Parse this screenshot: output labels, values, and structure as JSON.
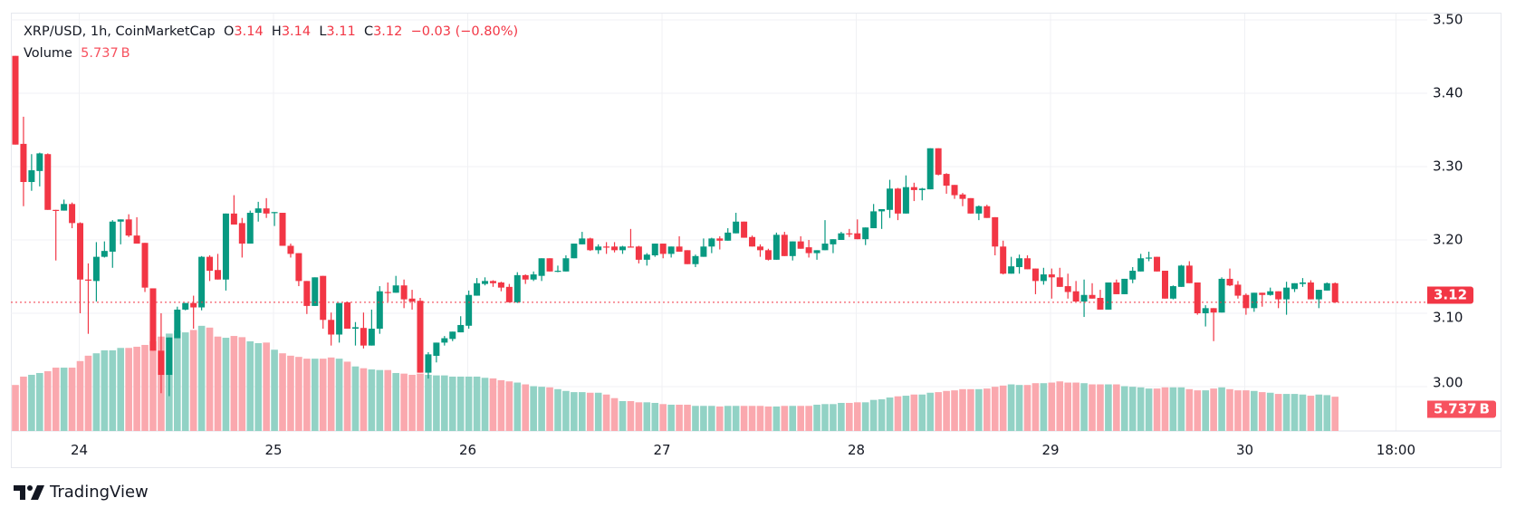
{
  "legend": {
    "symbol": "XRP/USD, 1h, CoinMarketCap",
    "o_label": "O",
    "o": "3.14",
    "h_label": "H",
    "h": "3.14",
    "l_label": "L",
    "l": "3.11",
    "c_label": "C",
    "c": "3.12",
    "change": "−0.03 (−0.80%)",
    "volume_label": "Volume",
    "volume": "5.737 B"
  },
  "colors": {
    "up": "#089981",
    "down": "#f23645",
    "up_volume": "#92d2c5",
    "down_volume": "#faa8ae",
    "grid": "#f0f1f4"
  },
  "price_axis": [
    "3.50",
    "3.40",
    "3.30",
    "3.20",
    "3.10",
    "3.00"
  ],
  "time_axis": [
    "24",
    "25",
    "26",
    "27",
    "28",
    "29",
    "30",
    "18:00"
  ],
  "last_price_badge": "3.12",
  "volume_badge": "5.737 B",
  "brand": "TradingView",
  "chart_data": {
    "type": "candlestick",
    "interval": "1h",
    "start": "23 16:00",
    "fields": [
      "open",
      "high",
      "low",
      "close",
      "volume_B"
    ],
    "ylim": [
      2.95,
      3.51
    ],
    "candles": [
      [
        3.451,
        3.451,
        3.33,
        3.33,
        7.7
      ],
      [
        3.331,
        3.368,
        3.246,
        3.279,
        9.1
      ],
      [
        3.279,
        3.317,
        3.267,
        3.295,
        9.4
      ],
      [
        3.294,
        3.319,
        3.273,
        3.318,
        9.7
      ],
      [
        3.317,
        3.318,
        3.241,
        3.241,
        10.0
      ],
      [
        3.241,
        3.241,
        3.172,
        3.24,
        10.6
      ],
      [
        3.24,
        3.255,
        3.24,
        3.249,
        10.6
      ],
      [
        3.249,
        3.251,
        3.216,
        3.223,
        10.6
      ],
      [
        3.223,
        3.224,
        3.1,
        3.146,
        11.7
      ],
      [
        3.146,
        3.168,
        3.072,
        3.145,
        12.6
      ],
      [
        3.144,
        3.197,
        3.116,
        3.177,
        13.0
      ],
      [
        3.177,
        3.198,
        3.176,
        3.185,
        13.5
      ],
      [
        3.184,
        3.227,
        3.162,
        3.225,
        13.5
      ],
      [
        3.225,
        3.228,
        3.194,
        3.228,
        13.9
      ],
      [
        3.228,
        3.235,
        3.204,
        3.206,
        13.9
      ],
      [
        3.206,
        3.231,
        3.195,
        3.195,
        14.1
      ],
      [
        3.196,
        3.196,
        3.129,
        3.135,
        14.4
      ],
      [
        3.134,
        3.134,
        3.049,
        3.049,
        15.0
      ],
      [
        3.049,
        3.1,
        2.991,
        3.016,
        15.8
      ],
      [
        3.016,
        3.067,
        2.987,
        3.067,
        16.3
      ],
      [
        3.066,
        3.109,
        3.066,
        3.105,
        16.8
      ],
      [
        3.105,
        3.114,
        3.104,
        3.114,
        16.5
      ],
      [
        3.114,
        3.124,
        3.079,
        3.108,
        16.9
      ],
      [
        3.108,
        3.178,
        3.104,
        3.177,
        17.6
      ],
      [
        3.177,
        3.179,
        3.144,
        3.158,
        17.3
      ],
      [
        3.159,
        3.181,
        3.146,
        3.146,
        15.8
      ],
      [
        3.146,
        3.236,
        3.131,
        3.236,
        15.6
      ],
      [
        3.236,
        3.261,
        3.221,
        3.221,
        15.9
      ],
      [
        3.223,
        3.23,
        3.176,
        3.195,
        15.7
      ],
      [
        3.195,
        3.24,
        3.195,
        3.237,
        15.0
      ],
      [
        3.237,
        3.252,
        3.225,
        3.243,
        14.7
      ],
      [
        3.243,
        3.257,
        3.23,
        3.236,
        14.8
      ],
      [
        3.237,
        3.238,
        3.219,
        3.238,
        13.6
      ],
      [
        3.237,
        3.237,
        3.192,
        3.192,
        13.0
      ],
      [
        3.192,
        3.195,
        3.176,
        3.181,
        12.6
      ],
      [
        3.182,
        3.182,
        3.137,
        3.144,
        12.4
      ],
      [
        3.144,
        3.144,
        3.099,
        3.11,
        12.1
      ],
      [
        3.11,
        3.149,
        3.11,
        3.149,
        12.1
      ],
      [
        3.151,
        3.151,
        3.079,
        3.091,
        12.1
      ],
      [
        3.091,
        3.101,
        3.056,
        3.071,
        12.3
      ],
      [
        3.071,
        3.114,
        3.06,
        3.114,
        12.1
      ],
      [
        3.115,
        3.116,
        3.079,
        3.079,
        11.6
      ],
      [
        3.079,
        3.088,
        3.056,
        3.081,
        10.8
      ],
      [
        3.08,
        3.101,
        3.052,
        3.056,
        10.5
      ],
      [
        3.056,
        3.105,
        3.056,
        3.079,
        10.3
      ],
      [
        3.079,
        3.137,
        3.072,
        3.13,
        10.2
      ],
      [
        3.129,
        3.142,
        3.116,
        3.128,
        10.2
      ],
      [
        3.128,
        3.151,
        3.128,
        3.138,
        9.7
      ],
      [
        3.138,
        3.146,
        3.107,
        3.119,
        9.6
      ],
      [
        3.12,
        3.132,
        3.105,
        3.116,
        9.4
      ],
      [
        3.117,
        3.121,
        3.019,
        3.019,
        9.6
      ],
      [
        3.019,
        3.047,
        3.011,
        3.044,
        9.4
      ],
      [
        3.042,
        3.06,
        3.033,
        3.06,
        9.3
      ],
      [
        3.06,
        3.069,
        3.056,
        3.066,
        9.3
      ],
      [
        3.065,
        3.075,
        3.062,
        3.075,
        9.1
      ],
      [
        3.074,
        3.096,
        3.074,
        3.084,
        9.1
      ],
      [
        3.083,
        3.131,
        3.079,
        3.125,
        9.1
      ],
      [
        3.124,
        3.148,
        3.124,
        3.141,
        9.1
      ],
      [
        3.14,
        3.149,
        3.138,
        3.144,
        8.9
      ],
      [
        3.144,
        3.145,
        3.136,
        3.141,
        8.8
      ],
      [
        3.142,
        3.143,
        3.13,
        3.135,
        8.5
      ],
      [
        3.136,
        3.14,
        3.115,
        3.115,
        8.3
      ],
      [
        3.115,
        3.156,
        3.114,
        3.152,
        8.1
      ],
      [
        3.152,
        3.153,
        3.14,
        3.146,
        7.8
      ],
      [
        3.146,
        3.157,
        3.144,
        3.153,
        7.5
      ],
      [
        3.151,
        3.175,
        3.144,
        3.175,
        7.4
      ],
      [
        3.175,
        3.175,
        3.157,
        3.157,
        7.3
      ],
      [
        3.157,
        3.165,
        3.156,
        3.158,
        7.0
      ],
      [
        3.157,
        3.179,
        3.157,
        3.175,
        6.7
      ],
      [
        3.175,
        3.195,
        3.175,
        3.195,
        6.5
      ],
      [
        3.194,
        3.211,
        3.194,
        3.202,
        6.5
      ],
      [
        3.202,
        3.203,
        3.185,
        3.186,
        6.4
      ],
      [
        3.186,
        3.194,
        3.181,
        3.191,
        6.4
      ],
      [
        3.191,
        3.197,
        3.181,
        3.19,
        6.1
      ],
      [
        3.191,
        3.197,
        3.183,
        3.186,
        5.5
      ],
      [
        3.186,
        3.192,
        3.181,
        3.191,
        5.0
      ],
      [
        3.191,
        3.215,
        3.19,
        3.19,
        5.0
      ],
      [
        3.191,
        3.192,
        3.168,
        3.173,
        4.8
      ],
      [
        3.173,
        3.182,
        3.165,
        3.18,
        4.8
      ],
      [
        3.179,
        3.195,
        3.177,
        3.195,
        4.7
      ],
      [
        3.195,
        3.195,
        3.175,
        3.181,
        4.5
      ],
      [
        3.181,
        3.191,
        3.176,
        3.191,
        4.4
      ],
      [
        3.191,
        3.205,
        3.184,
        3.184,
        4.4
      ],
      [
        3.186,
        3.186,
        3.167,
        3.167,
        4.4
      ],
      [
        3.167,
        3.18,
        3.163,
        3.178,
        4.2
      ],
      [
        3.177,
        3.202,
        3.177,
        3.191,
        4.2
      ],
      [
        3.191,
        3.203,
        3.182,
        3.202,
        4.2
      ],
      [
        3.202,
        3.205,
        3.187,
        3.199,
        4.1
      ],
      [
        3.199,
        3.216,
        3.199,
        3.21,
        4.2
      ],
      [
        3.209,
        3.237,
        3.209,
        3.225,
        4.2
      ],
      [
        3.225,
        3.225,
        3.203,
        3.203,
        4.2
      ],
      [
        3.204,
        3.206,
        3.191,
        3.191,
        4.2
      ],
      [
        3.191,
        3.194,
        3.177,
        3.186,
        4.2
      ],
      [
        3.186,
        3.188,
        3.172,
        3.173,
        4.1
      ],
      [
        3.173,
        3.21,
        3.173,
        3.207,
        4.1
      ],
      [
        3.207,
        3.211,
        3.178,
        3.178,
        4.2
      ],
      [
        3.178,
        3.198,
        3.172,
        3.198,
        4.2
      ],
      [
        3.198,
        3.205,
        3.188,
        3.188,
        4.2
      ],
      [
        3.19,
        3.2,
        3.176,
        3.182,
        4.2
      ],
      [
        3.182,
        3.186,
        3.173,
        3.186,
        4.4
      ],
      [
        3.186,
        3.227,
        3.186,
        3.195,
        4.5
      ],
      [
        3.194,
        3.201,
        3.182,
        3.201,
        4.5
      ],
      [
        3.2,
        3.211,
        3.2,
        3.209,
        4.7
      ],
      [
        3.209,
        3.215,
        3.204,
        3.208,
        4.7
      ],
      [
        3.209,
        3.228,
        3.201,
        3.201,
        4.8
      ],
      [
        3.201,
        3.217,
        3.193,
        3.217,
        4.8
      ],
      [
        3.216,
        3.249,
        3.216,
        3.239,
        5.2
      ],
      [
        3.239,
        3.242,
        3.215,
        3.242,
        5.3
      ],
      [
        3.241,
        3.282,
        3.23,
        3.27,
        5.6
      ],
      [
        3.27,
        3.271,
        3.227,
        3.236,
        5.8
      ],
      [
        3.236,
        3.288,
        3.236,
        3.272,
        5.9
      ],
      [
        3.272,
        3.278,
        3.253,
        3.268,
        6.1
      ],
      [
        3.268,
        3.271,
        3.254,
        3.27,
        6.1
      ],
      [
        3.269,
        3.325,
        3.269,
        3.325,
        6.4
      ],
      [
        3.325,
        3.325,
        3.288,
        3.289,
        6.5
      ],
      [
        3.29,
        3.291,
        3.263,
        3.274,
        6.7
      ],
      [
        3.275,
        3.275,
        3.256,
        3.261,
        6.8
      ],
      [
        3.262,
        3.264,
        3.246,
        3.256,
        7.0
      ],
      [
        3.257,
        3.257,
        3.236,
        3.236,
        7.0
      ],
      [
        3.236,
        3.247,
        3.227,
        3.246,
        7.0
      ],
      [
        3.246,
        3.248,
        3.23,
        3.23,
        7.1
      ],
      [
        3.231,
        3.231,
        3.179,
        3.191,
        7.4
      ],
      [
        3.191,
        3.199,
        3.153,
        3.154,
        7.6
      ],
      [
        3.154,
        3.177,
        3.154,
        3.164,
        7.8
      ],
      [
        3.163,
        3.18,
        3.154,
        3.175,
        7.7
      ],
      [
        3.175,
        3.179,
        3.16,
        3.16,
        7.7
      ],
      [
        3.161,
        3.161,
        3.126,
        3.144,
        8.0
      ],
      [
        3.144,
        3.162,
        3.139,
        3.153,
        8.0
      ],
      [
        3.153,
        3.161,
        3.12,
        3.149,
        8.1
      ],
      [
        3.149,
        3.162,
        3.136,
        3.136,
        8.3
      ],
      [
        3.137,
        3.154,
        3.12,
        3.129,
        8.1
      ],
      [
        3.13,
        3.144,
        3.116,
        3.116,
        8.1
      ],
      [
        3.116,
        3.146,
        3.095,
        3.125,
        8.0
      ],
      [
        3.125,
        3.141,
        3.12,
        3.12,
        7.8
      ],
      [
        3.121,
        3.132,
        3.105,
        3.105,
        7.8
      ],
      [
        3.105,
        3.142,
        3.105,
        3.142,
        7.8
      ],
      [
        3.142,
        3.146,
        3.126,
        3.126,
        7.8
      ],
      [
        3.126,
        3.147,
        3.126,
        3.147,
        7.5
      ],
      [
        3.146,
        3.163,
        3.141,
        3.158,
        7.4
      ],
      [
        3.157,
        3.181,
        3.157,
        3.175,
        7.3
      ],
      [
        3.175,
        3.184,
        3.171,
        3.176,
        7.1
      ],
      [
        3.177,
        3.177,
        3.157,
        3.157,
        7.1
      ],
      [
        3.158,
        3.158,
        3.12,
        3.12,
        7.3
      ],
      [
        3.12,
        3.138,
        3.119,
        3.137,
        7.3
      ],
      [
        3.136,
        3.166,
        3.136,
        3.165,
        7.3
      ],
      [
        3.165,
        3.171,
        3.141,
        3.141,
        7.0
      ],
      [
        3.142,
        3.142,
        3.098,
        3.1,
        6.8
      ],
      [
        3.1,
        3.111,
        3.082,
        3.107,
        6.8
      ],
      [
        3.107,
        3.107,
        3.062,
        3.101,
        7.1
      ],
      [
        3.101,
        3.149,
        3.101,
        3.147,
        7.3
      ],
      [
        3.147,
        3.161,
        3.137,
        3.138,
        7.0
      ],
      [
        3.139,
        3.144,
        3.12,
        3.124,
        6.8
      ],
      [
        3.125,
        3.127,
        3.098,
        3.107,
        6.8
      ],
      [
        3.107,
        3.128,
        3.102,
        3.128,
        6.7
      ],
      [
        3.128,
        3.128,
        3.109,
        3.125,
        6.5
      ],
      [
        3.125,
        3.135,
        3.124,
        3.13,
        6.4
      ],
      [
        3.13,
        3.13,
        3.107,
        3.119,
        6.2
      ],
      [
        3.119,
        3.143,
        3.098,
        3.135,
        6.2
      ],
      [
        3.133,
        3.141,
        3.129,
        3.141,
        6.2
      ],
      [
        3.14,
        3.148,
        3.136,
        3.142,
        6.1
      ],
      [
        3.142,
        3.145,
        3.119,
        3.119,
        5.9
      ],
      [
        3.119,
        3.132,
        3.107,
        3.132,
        6.1
      ],
      [
        3.131,
        3.142,
        3.131,
        3.141,
        6.0
      ],
      [
        3.141,
        3.142,
        3.114,
        3.115,
        5.737
      ]
    ]
  }
}
